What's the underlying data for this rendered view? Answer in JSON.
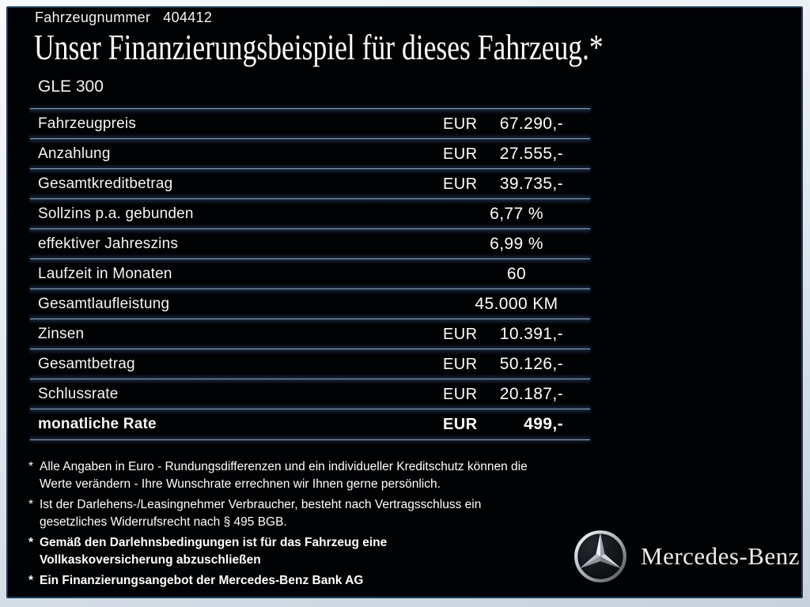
{
  "header": {
    "vehicle_number_label": "Fahrzeugnummer",
    "vehicle_number_value": "404412",
    "title": "Unser Finanzierungsbeispiel für dieses Fahrzeug.*",
    "model": "GLE 300"
  },
  "finance_table": {
    "rows": [
      {
        "label": "Fahrzeugpreis",
        "currency": "EUR",
        "value": "67.290,-",
        "bold": false
      },
      {
        "label": "Anzahlung",
        "currency": "EUR",
        "value": "27.555,-",
        "bold": false
      },
      {
        "label": "Gesamtkreditbetrag",
        "currency": "EUR",
        "value": "39.735,-",
        "bold": false
      },
      {
        "label": "Sollzins p.a. gebunden",
        "currency": "",
        "value": "6,77 %",
        "bold": false
      },
      {
        "label": "effektiver Jahreszins",
        "currency": "",
        "value": "6,99 %",
        "bold": false
      },
      {
        "label": "Laufzeit in Monaten",
        "currency": "",
        "value": "60",
        "bold": false
      },
      {
        "label": "Gesamtlaufleistung",
        "currency": "",
        "value": "45.000 KM",
        "bold": false
      },
      {
        "label": "Zinsen",
        "currency": "EUR",
        "value": "10.391,-",
        "bold": false
      },
      {
        "label": "Gesamtbetrag",
        "currency": "EUR",
        "value": "50.126,-",
        "bold": false
      },
      {
        "label": "Schlussrate",
        "currency": "EUR",
        "value": "20.187,-",
        "bold": false
      },
      {
        "label": "monatliche Rate",
        "currency": "EUR",
        "value": "499,-",
        "bold": true
      }
    ]
  },
  "footnotes": [
    {
      "marker": "*",
      "bold": false,
      "text": "Alle Angaben in Euro - Rundungsdifferenzen und ein individueller Kreditschutz können die\nWerte verändern - Ihre Wunschrate errechnen wir Ihnen gerne persönlich."
    },
    {
      "marker": "*",
      "bold": false,
      "text": "Ist der Darlehens-/Leasingnehmer Verbraucher, besteht nach Vertragsschluss ein\ngesetzliches Widerrufsrecht nach § 495 BGB."
    },
    {
      "marker": "*",
      "bold": true,
      "text": "Gemäß den Darlehnsbedingungen ist für das Fahrzeug eine\nVollkaskoversicherung abzuschließen"
    },
    {
      "marker": "*",
      "bold": true,
      "text": "Ein Finanzierungsangebot der Mercedes-Benz Bank AG"
    }
  ],
  "brand": {
    "name": "Mercedes-Benz",
    "logo_icon": "mercedes-star"
  },
  "colors": {
    "background": "#010204",
    "frame_outer": "#dde4ee",
    "frame_line": "#1e3c5a",
    "separator": "#96a6ba",
    "text": "#ffffff"
  }
}
